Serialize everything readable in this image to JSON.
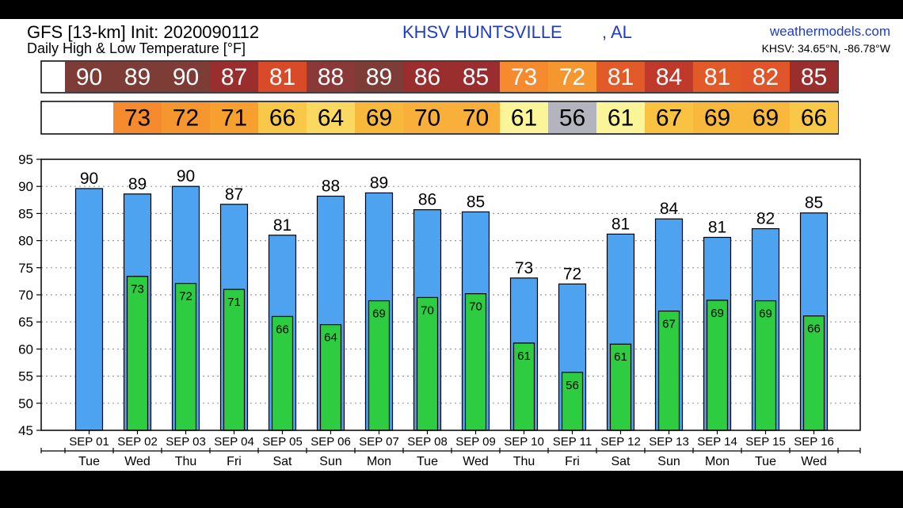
{
  "header": {
    "model_line": "GFS [13-km] Init: 2020090112",
    "subtitle": "Daily High & Low Temperature [°F]",
    "station": "KHSV HUNTSVILLE",
    "station_state": ", AL",
    "site": "weathermodels.com",
    "coords": "KHSV: 34.65°N, -86.78°W"
  },
  "colors": {
    "high_bar": "#4da3f0",
    "low_bar": "#2ecc40",
    "grid": "#9a9a9a"
  },
  "chart_data": {
    "type": "bar",
    "categories": [
      "SEP 01",
      "SEP 02",
      "SEP 03",
      "SEP 04",
      "SEP 05",
      "SEP 06",
      "SEP 07",
      "SEP 08",
      "SEP 09",
      "SEP 10",
      "SEP 11",
      "SEP 12",
      "SEP 13",
      "SEP 14",
      "SEP 15",
      "SEP 16"
    ],
    "days": [
      "Tue",
      "Wed",
      "Thu",
      "Fri",
      "Sat",
      "Sun",
      "Mon",
      "Tue",
      "Wed",
      "Thu",
      "Fri",
      "Sat",
      "Sun",
      "Mon",
      "Tue",
      "Wed"
    ],
    "series": [
      {
        "values": [
          89.6,
          88.6,
          90.0,
          86.7,
          81.0,
          88.2,
          88.8,
          85.7,
          85.3,
          73.1,
          72.0,
          81.2,
          84.0,
          80.6,
          82.2,
          85.1
        ]
      },
      {
        "values": [
          null,
          73.4,
          72.1,
          71.0,
          66.0,
          64.5,
          68.9,
          69.5,
          70.2,
          61.1,
          55.7,
          60.9,
          67.0,
          69.0,
          68.9,
          66.1
        ]
      }
    ],
    "high_labels": [
      "90",
      "89",
      "90",
      "87",
      "81",
      "88",
      "89",
      "86",
      "85",
      "73",
      "72",
      "81",
      "84",
      "81",
      "82",
      "85"
    ],
    "low_labels": [
      "",
      "73",
      "72",
      "71",
      "66",
      "64",
      "69",
      "70",
      "70",
      "61",
      "56",
      "61",
      "67",
      "69",
      "69",
      "66"
    ],
    "high_strip": {
      "values": [
        "90",
        "89",
        "90",
        "87",
        "81",
        "88",
        "89",
        "86",
        "85",
        "73",
        "72",
        "81",
        "84",
        "81",
        "82",
        "85"
      ],
      "colors": [
        "#7e3c36",
        "#7e3c36",
        "#7e3c36",
        "#9a2e2e",
        "#d94b28",
        "#8a3838",
        "#7e3c36",
        "#9a2e2e",
        "#9a2e2e",
        "#f58a2e",
        "#f5962e",
        "#e25a28",
        "#c03a2c",
        "#e25a28",
        "#e0562a",
        "#9a2e2e"
      ]
    },
    "low_strip": {
      "values": [
        "",
        "73",
        "72",
        "71",
        "66",
        "64",
        "69",
        "70",
        "70",
        "61",
        "56",
        "61",
        "67",
        "69",
        "69",
        "66"
      ],
      "colors": [
        "#ffffff",
        "#f58a2e",
        "#f5962e",
        "#f7a030",
        "#f9c848",
        "#fbd860",
        "#f8b83c",
        "#f8b03a",
        "#f8b03a",
        "#fbf59a",
        "#b4b4be",
        "#fbf59a",
        "#f9c240",
        "#f8b83c",
        "#f8b83c",
        "#f9c848"
      ]
    },
    "y_ticks": [
      "95",
      "90",
      "85",
      "80",
      "75",
      "70",
      "65",
      "60",
      "55",
      "50",
      "45"
    ],
    "ylim": [
      45,
      95
    ],
    "grid": true
  }
}
